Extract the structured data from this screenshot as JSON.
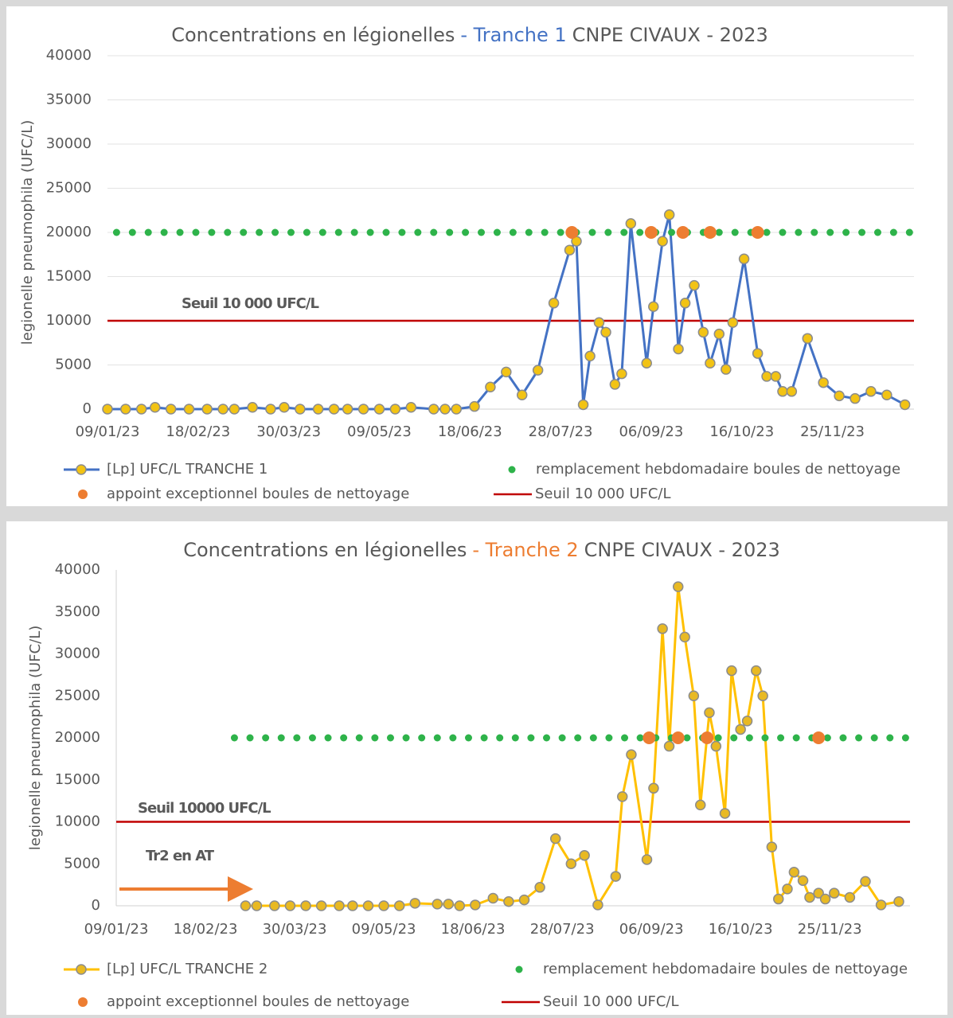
{
  "chart_data": [
    {
      "type": "line",
      "title": [
        "Concentrations en légionelles",
        "- Tranche 1",
        "CNPE CIVAUX - 2023"
      ],
      "title_highlight_color": "#4472c4",
      "y_label": "legionelle pneumophila (UFC/L)",
      "xlim": [
        "09/01/23",
        "31/12/23"
      ],
      "xticks": [
        "09/01/23",
        "18/02/23",
        "30/03/23",
        "09/05/23",
        "18/06/23",
        "28/07/23",
        "06/09/23",
        "16/10/23",
        "25/11/23"
      ],
      "ylim": [
        0,
        40000
      ],
      "yticks": [
        0,
        5000,
        10000,
        15000,
        20000,
        25000,
        30000,
        35000,
        40000
      ],
      "grid": true,
      "series": [
        {
          "name": "[Lp] UFC/L TRANCHE 1",
          "style": "line",
          "color": "#4472c4",
          "marker_color": "#f2c314",
          "x": [
            "09/01/23",
            "17/01/23",
            "24/01/23",
            "30/01/23",
            "06/02/23",
            "14/02/23",
            "22/02/23",
            "01/03/23",
            "06/03/23",
            "14/03/23",
            "22/03/23",
            "28/03/23",
            "04/04/23",
            "12/04/23",
            "19/04/23",
            "25/04/23",
            "02/05/23",
            "09/05/23",
            "16/05/23",
            "23/05/23",
            "02/06/23",
            "07/06/23",
            "12/06/23",
            "20/06/23",
            "27/06/23",
            "04/07/23",
            "11/07/23",
            "18/07/23",
            "25/07/23",
            "01/08/23",
            "04/08/23",
            "07/08/23",
            "10/08/23",
            "14/08/23",
            "17/08/23",
            "21/08/23",
            "24/08/23",
            "28/08/23",
            "04/09/23",
            "07/09/23",
            "11/09/23",
            "14/09/23",
            "18/09/23",
            "21/09/23",
            "25/09/23",
            "29/09/23",
            "02/10/23",
            "06/10/23",
            "09/10/23",
            "12/10/23",
            "17/10/23",
            "23/10/23",
            "27/10/23",
            "31/10/23",
            "03/11/23",
            "07/11/23",
            "14/11/23",
            "21/11/23",
            "28/11/23",
            "05/12/23",
            "12/12/23",
            "19/12/23",
            "27/12/23"
          ],
          "values": [
            0,
            0,
            0,
            200,
            0,
            0,
            0,
            0,
            0,
            200,
            0,
            200,
            0,
            0,
            0,
            0,
            0,
            0,
            0,
            200,
            0,
            0,
            0,
            300,
            2500,
            4200,
            1600,
            4400,
            12000,
            18000,
            19000,
            500,
            6000,
            9800,
            8700,
            2800,
            4000,
            21000,
            5200,
            11600,
            19000,
            22000,
            6800,
            12000,
            14000,
            8700,
            5200,
            8500,
            4500,
            9800,
            17000,
            6300,
            3700,
            3700,
            2000,
            2000,
            8000,
            3000,
            1500,
            1200,
            2000,
            1600,
            500
          ]
        },
        {
          "name": "remplacement hebdomadaire boules de nettoyage",
          "style": "dots",
          "color": "#2eb34a",
          "x": [
            "13/01/23",
            "20/01/23",
            "27/01/23",
            "03/02/23",
            "10/02/23",
            "17/02/23",
            "24/02/23",
            "03/03/23",
            "10/03/23",
            "17/03/23",
            "24/03/23",
            "31/03/23",
            "07/04/23",
            "14/04/23",
            "21/04/23",
            "28/04/23",
            "05/05/23",
            "12/05/23",
            "19/05/23",
            "26/05/23",
            "02/06/23",
            "09/06/23",
            "16/06/23",
            "23/06/23",
            "30/06/23",
            "07/07/23",
            "14/07/23",
            "21/07/23",
            "28/07/23",
            "04/08/23",
            "11/08/23",
            "18/08/23",
            "25/08/23",
            "01/09/23",
            "08/09/23",
            "15/09/23",
            "22/09/23",
            "29/09/23",
            "06/10/23",
            "13/10/23",
            "20/10/23",
            "27/10/23",
            "03/11/23",
            "10/11/23",
            "17/11/23",
            "24/11/23",
            "01/12/23",
            "08/12/23",
            "15/12/23",
            "22/12/23",
            "29/12/23"
          ],
          "values": [
            20000,
            20000,
            20000,
            20000,
            20000,
            20000,
            20000,
            20000,
            20000,
            20000,
            20000,
            20000,
            20000,
            20000,
            20000,
            20000,
            20000,
            20000,
            20000,
            20000,
            20000,
            20000,
            20000,
            20000,
            20000,
            20000,
            20000,
            20000,
            20000,
            20000,
            20000,
            20000,
            20000,
            20000,
            20000,
            20000,
            20000,
            20000,
            20000,
            20000,
            20000,
            20000,
            20000,
            20000,
            20000,
            20000,
            20000,
            20000,
            20000,
            20000,
            20000
          ]
        },
        {
          "name": "appoint exceptionnel boules de nettoyage",
          "style": "dots-large",
          "color": "#ed7d31",
          "x": [
            "02/08/23",
            "06/09/23",
            "20/09/23",
            "02/10/23",
            "23/10/23"
          ],
          "values": [
            20000,
            20000,
            20000,
            20000,
            20000
          ]
        }
      ],
      "threshold": {
        "name": "Seuil 10 000 UFC/L",
        "value": 10000,
        "color": "#c00000"
      },
      "annotations": [
        {
          "text": "Seuil 10 000 UFC/L",
          "color": "#e00000"
        }
      ]
    },
    {
      "type": "line",
      "title": [
        "Concentrations en légionelles",
        "- Tranche 2",
        "CNPE CIVAUX - 2023"
      ],
      "title_highlight_color": "#ed7d31",
      "y_label": "legionelle pneumophila (UFC/L)",
      "xlim": [
        "09/01/23",
        "31/12/23"
      ],
      "xticks": [
        "09/01/23",
        "18/02/23",
        "30/03/23",
        "09/05/23",
        "18/06/23",
        "28/07/23",
        "06/09/23",
        "16/10/23",
        "25/11/23"
      ],
      "ylim": [
        0,
        40000
      ],
      "yticks": [
        0,
        5000,
        10000,
        15000,
        20000,
        25000,
        30000,
        35000,
        40000
      ],
      "grid": false,
      "series": [
        {
          "name": "[Lp] UFC/L TRANCHE 2",
          "style": "line",
          "color": "#ffc000",
          "marker_color": "#e8b923",
          "x": [
            "08/03/23",
            "13/03/23",
            "21/03/23",
            "28/03/23",
            "04/04/23",
            "11/04/23",
            "19/04/23",
            "25/04/23",
            "02/05/23",
            "09/05/23",
            "16/05/23",
            "23/05/23",
            "02/06/23",
            "07/06/23",
            "12/06/23",
            "19/06/23",
            "27/06/23",
            "04/07/23",
            "11/07/23",
            "18/07/23",
            "25/07/23",
            "01/08/23",
            "07/08/23",
            "13/08/23",
            "21/08/23",
            "24/08/23",
            "28/08/23",
            "04/09/23",
            "07/09/23",
            "11/09/23",
            "14/09/23",
            "18/09/23",
            "21/09/23",
            "25/09/23",
            "28/09/23",
            "02/10/23",
            "05/10/23",
            "09/10/23",
            "12/10/23",
            "16/10/23",
            "19/10/23",
            "23/10/23",
            "26/10/23",
            "30/10/23",
            "02/11/23",
            "06/11/23",
            "09/11/23",
            "13/11/23",
            "16/11/23",
            "20/11/23",
            "23/11/23",
            "27/11/23",
            "04/12/23",
            "11/12/23",
            "18/12/23",
            "26/12/23"
          ],
          "values": [
            0,
            0,
            0,
            0,
            0,
            0,
            0,
            0,
            0,
            0,
            0,
            300,
            200,
            200,
            0,
            100,
            900,
            500,
            700,
            2200,
            8000,
            5000,
            6000,
            100,
            3500,
            13000,
            18000,
            5500,
            14000,
            33000,
            19000,
            38000,
            32000,
            25000,
            12000,
            23000,
            19000,
            11000,
            28000,
            21000,
            22000,
            28000,
            25000,
            7000,
            800,
            2000,
            4000,
            3000,
            1000,
            1500,
            800,
            1500,
            1000,
            2900,
            100,
            500
          ]
        },
        {
          "name": "remplacement hebdomadaire boules de nettoyage",
          "style": "dots",
          "color": "#2eb34a",
          "x": [
            "03/03/23",
            "10/03/23",
            "17/03/23",
            "24/03/23",
            "31/03/23",
            "07/04/23",
            "14/04/23",
            "21/04/23",
            "28/04/23",
            "05/05/23",
            "12/05/23",
            "19/05/23",
            "26/05/23",
            "02/06/23",
            "09/06/23",
            "16/06/23",
            "23/06/23",
            "30/06/23",
            "07/07/23",
            "14/07/23",
            "21/07/23",
            "28/07/23",
            "04/08/23",
            "11/08/23",
            "18/08/23",
            "25/08/23",
            "01/09/23",
            "08/09/23",
            "15/09/23",
            "22/09/23",
            "29/09/23",
            "06/10/23",
            "13/10/23",
            "20/10/23",
            "27/10/23",
            "03/11/23",
            "10/11/23",
            "17/11/23",
            "24/11/23",
            "01/12/23",
            "08/12/23",
            "15/12/23",
            "22/12/23",
            "29/12/23"
          ],
          "values": [
            20000,
            20000,
            20000,
            20000,
            20000,
            20000,
            20000,
            20000,
            20000,
            20000,
            20000,
            20000,
            20000,
            20000,
            20000,
            20000,
            20000,
            20000,
            20000,
            20000,
            20000,
            20000,
            20000,
            20000,
            20000,
            20000,
            20000,
            20000,
            20000,
            20000,
            20000,
            20000,
            20000,
            20000,
            20000,
            20000,
            20000,
            20000,
            20000,
            20000,
            20000,
            20000,
            20000,
            20000
          ]
        },
        {
          "name": "appoint exceptionnel boules de nettoyage",
          "style": "dots-large",
          "color": "#ed7d31",
          "x": [
            "05/09/23",
            "18/09/23",
            "01/10/23",
            "20/11/23"
          ],
          "values": [
            20000,
            20000,
            20000,
            20000
          ]
        }
      ],
      "threshold": {
        "name": "Seuil 10 000 UFC/L",
        "value": 10000,
        "color": "#c00000"
      },
      "annotations": [
        {
          "text": "Seuil 10000 UFC/L",
          "color": "#e00000"
        },
        {
          "text": "Tr2 en AT",
          "color": "#ed7d31"
        }
      ]
    }
  ]
}
